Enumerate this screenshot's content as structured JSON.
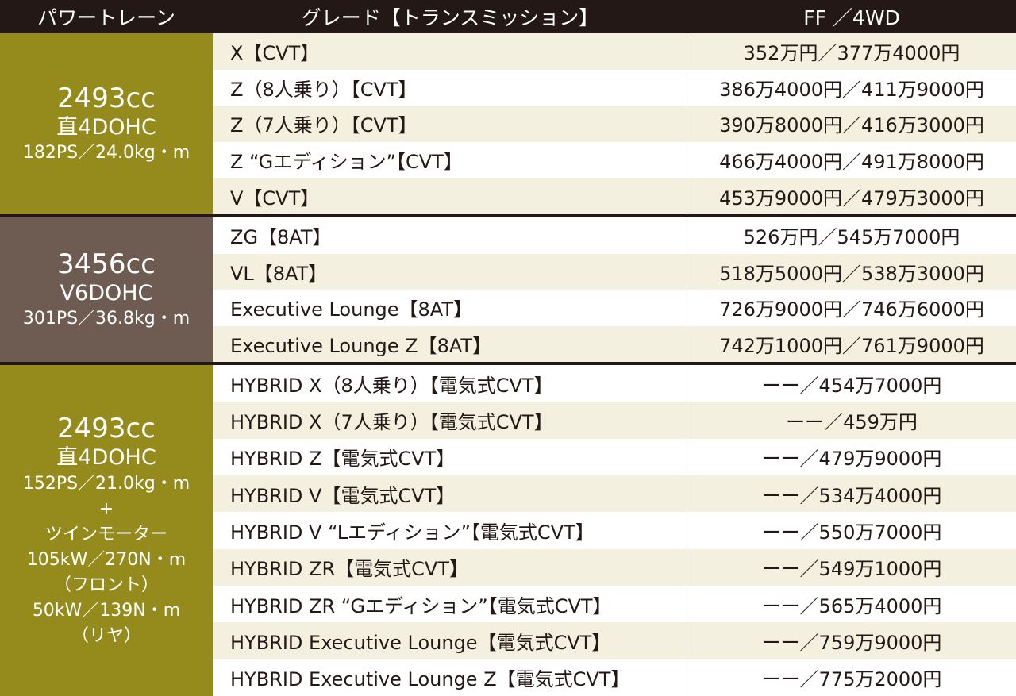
{
  "header": {
    "powertrain": "パワートレーン",
    "grade": "グレード【トランスミッション】",
    "price": "FF ／4WD"
  },
  "groups": [
    {
      "displacement": "2493cc",
      "engine": "直4DOHC",
      "spec": [
        "182PS／24.0kg・m"
      ],
      "color": "#948b1c",
      "rows": [
        {
          "grade": "X【CVT】",
          "price": "352万円／377万4000円"
        },
        {
          "grade": "Z（8人乗り）【CVT】",
          "price": "386万4000円／411万9000円"
        },
        {
          "grade": "Z（7人乗り）【CVT】",
          "price": "390万8000円／416万3000円"
        },
        {
          "grade": "Z “Gエディション”【CVT】",
          "price": "466万4000円／491万8000円"
        },
        {
          "grade": "V【CVT】",
          "price": "453万9000円／479万3000円"
        }
      ]
    },
    {
      "displacement": "3456cc",
      "engine": "V6DOHC",
      "spec": [
        "301PS／36.8kg・m"
      ],
      "color": "#6e5c52",
      "rows": [
        {
          "grade": "ZG【8AT】",
          "price": "526万円／545万7000円"
        },
        {
          "grade": "VL【8AT】",
          "price": "518万5000円／538万3000円"
        },
        {
          "grade": "Executive Lounge【8AT】",
          "price": "726万9000円／746万6000円"
        },
        {
          "grade": "Executive Lounge Z【8AT】",
          "price": "742万1000円／761万9000円"
        }
      ]
    },
    {
      "displacement": "2493cc",
      "engine": "直4DOHC",
      "spec": [
        "152PS／21.0kg・m",
        "+",
        "ツインモーター",
        "105kW／270N・m",
        "（フロント）",
        "50kW／139N・m",
        "（リヤ）"
      ],
      "color": "#948b1c",
      "rows": [
        {
          "grade": "HYBRID X（8人乗り）【電気式CVT】",
          "price": "ーー／454万7000円"
        },
        {
          "grade": "HYBRID X（7人乗り）【電気式CVT】",
          "price": "ーー／459万円"
        },
        {
          "grade": "HYBRID Z【電気式CVT】",
          "price": "ーー／479万9000円"
        },
        {
          "grade": "HYBRID V【電気式CVT】",
          "price": "ーー／534万4000円"
        },
        {
          "grade": "HYBRID V “Lエディション”【電気式CVT】",
          "price": "ーー／550万7000円"
        },
        {
          "grade": "HYBRID ZR【電気式CVT】",
          "price": "ーー／549万1000円"
        },
        {
          "grade": "HYBRID ZR “Gエディション”【電気式CVT】",
          "price": "ーー／565万4000円"
        },
        {
          "grade": "HYBRID Executive Lounge【電気式CVT】",
          "price": "ーー／759万9000円"
        },
        {
          "grade": "HYBRID Executive Lounge Z【電気式CVT】",
          "price": "ーー／775万2000円"
        }
      ]
    }
  ]
}
